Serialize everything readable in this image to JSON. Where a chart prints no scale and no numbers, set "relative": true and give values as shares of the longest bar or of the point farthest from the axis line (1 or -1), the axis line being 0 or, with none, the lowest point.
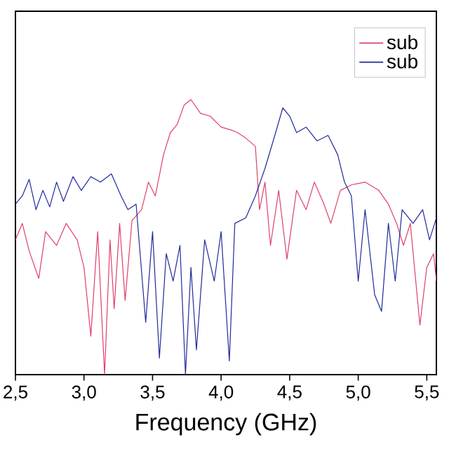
{
  "chart_data": {
    "type": "line",
    "relative": true,
    "xlabel": "Frequency (GHz)",
    "xlim": [
      2.5,
      5.57
    ],
    "xticks": [
      {
        "value": 2.5,
        "label": "2,5"
      },
      {
        "value": 3.0,
        "label": "3,0"
      },
      {
        "value": 3.5,
        "label": "3,5"
      },
      {
        "value": 4.0,
        "label": "4,0"
      },
      {
        "value": 4.5,
        "label": "4,5"
      },
      {
        "value": 5.0,
        "label": "5,0"
      },
      {
        "value": 5.5,
        "label": "5,5"
      }
    ],
    "legend": "top right",
    "series": [
      {
        "name": "sub",
        "color": "#e0406a",
        "x": [
          2.5,
          2.55,
          2.6,
          2.67,
          2.72,
          2.8,
          2.87,
          2.95,
          3.0,
          3.05,
          3.1,
          3.15,
          3.19,
          3.22,
          3.26,
          3.3,
          3.35,
          3.42,
          3.47,
          3.52,
          3.58,
          3.63,
          3.68,
          3.73,
          3.78,
          3.85,
          3.92,
          4.0,
          4.07,
          4.12,
          4.18,
          4.25,
          4.28,
          4.32,
          4.36,
          4.42,
          4.48,
          4.55,
          4.62,
          4.68,
          4.75,
          4.8,
          4.87,
          4.95,
          5.05,
          5.15,
          5.22,
          5.28,
          5.33,
          5.38,
          5.45,
          5.5,
          5.55,
          5.57
        ],
        "values": [
          0.49,
          0.55,
          0.45,
          0.35,
          0.52,
          0.47,
          0.55,
          0.49,
          0.39,
          0.14,
          0.52,
          0,
          0.49,
          0.24,
          0.55,
          0.27,
          0.56,
          0.6,
          0.7,
          0.65,
          0.8,
          0.88,
          0.91,
          0.98,
          1,
          0.95,
          0.94,
          0.9,
          0.89,
          0.88,
          0.86,
          0.83,
          0.6,
          0.7,
          0.47,
          0.67,
          0.42,
          0.67,
          0.6,
          0.7,
          0.62,
          0.55,
          0.67,
          0.69,
          0.7,
          0.67,
          0.62,
          0.55,
          0.47,
          0.55,
          0.18,
          0.39,
          0.44,
          0.34
        ]
      },
      {
        "name": "sub",
        "color": "#1f2a9a",
        "x": [
          2.5,
          2.55,
          2.6,
          2.65,
          2.7,
          2.75,
          2.8,
          2.85,
          2.92,
          2.98,
          3.05,
          3.12,
          3.2,
          3.27,
          3.32,
          3.38,
          3.45,
          3.5,
          3.55,
          3.6,
          3.65,
          3.7,
          3.74,
          3.78,
          3.82,
          3.88,
          3.95,
          4.0,
          4.06,
          4.1,
          4.18,
          4.25,
          4.32,
          4.38,
          4.45,
          4.5,
          4.55,
          4.62,
          4.7,
          4.78,
          4.85,
          4.9,
          4.95,
          5.0,
          5.05,
          5.12,
          5.17,
          5.22,
          5.27,
          5.32,
          5.4,
          5.47,
          5.52,
          5.57
        ],
        "values": [
          0.62,
          0.65,
          0.71,
          0.6,
          0.67,
          0.61,
          0.7,
          0.63,
          0.72,
          0.67,
          0.72,
          0.7,
          0.73,
          0.65,
          0.6,
          0.62,
          0.19,
          0.52,
          0.06,
          0.44,
          0.34,
          0.47,
          0,
          0.39,
          0.09,
          0.49,
          0.34,
          0.52,
          0.05,
          0.55,
          0.57,
          0.65,
          0.75,
          0.85,
          0.97,
          0.94,
          0.88,
          0.9,
          0.85,
          0.87,
          0.8,
          0.7,
          0.65,
          0.34,
          0.6,
          0.29,
          0.23,
          0.55,
          0.34,
          0.6,
          0.55,
          0.6,
          0.49,
          0.57
        ]
      }
    ]
  }
}
